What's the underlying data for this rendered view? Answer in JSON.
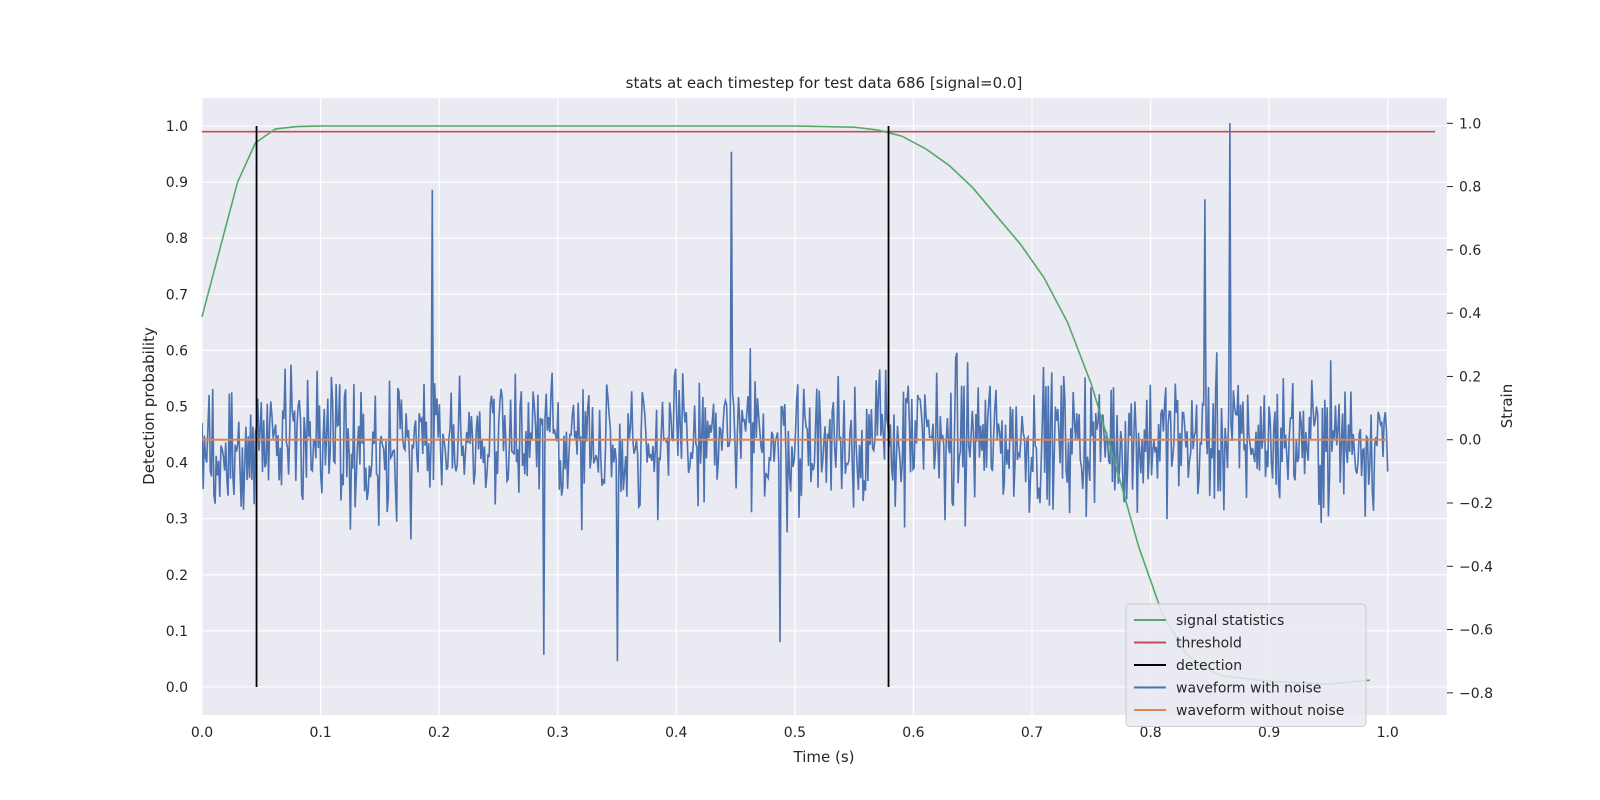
{
  "chart_data": {
    "type": "line",
    "title": "stats at each timestep for test data 686 [signal=0.0]",
    "xlabel": "Time (s)",
    "ylabel": "Detection probability",
    "y2label": "Strain",
    "xlim": [
      0.0,
      1.05
    ],
    "ylim": [
      -0.05,
      1.05
    ],
    "y2lim": [
      -0.87,
      1.08
    ],
    "grid": true,
    "legend_placement": "lower-right",
    "x_ticks": [
      "0.0",
      "0.1",
      "0.2",
      "0.3",
      "0.4",
      "0.5",
      "0.6",
      "0.7",
      "0.8",
      "0.9",
      "1.0"
    ],
    "y_ticks": [
      "0.0",
      "0.1",
      "0.2",
      "0.3",
      "0.4",
      "0.5",
      "0.6",
      "0.7",
      "0.8",
      "0.9",
      "1.0"
    ],
    "y2_ticks": [
      "−0.8",
      "−0.6",
      "−0.4",
      "−0.2",
      "0.0",
      "0.2",
      "0.4",
      "0.6",
      "0.8",
      "1.0"
    ],
    "series": [
      {
        "name": "signal statistics",
        "axis": "left",
        "color": "#55a868",
        "x": [
          0.0,
          0.02,
          0.03,
          0.045,
          0.062,
          0.08,
          0.1,
          0.2,
          0.3,
          0.4,
          0.5,
          0.55,
          0.57,
          0.59,
          0.61,
          0.63,
          0.65,
          0.67,
          0.69,
          0.71,
          0.73,
          0.75,
          0.77,
          0.79,
          0.81,
          0.83,
          0.84,
          0.86,
          0.9,
          0.95,
          0.985
        ],
        "y": [
          0.66,
          0.82,
          0.9,
          0.97,
          0.995,
          0.999,
          1.0,
          1.0,
          1.0,
          1.0,
          1.0,
          0.998,
          0.993,
          0.982,
          0.96,
          0.93,
          0.89,
          0.84,
          0.79,
          0.73,
          0.65,
          0.54,
          0.4,
          0.25,
          0.13,
          0.06,
          0.04,
          0.02,
          0.01,
          0.005,
          0.012
        ]
      },
      {
        "name": "threshold",
        "axis": "left",
        "color": "#c44e52",
        "x": [
          0.0,
          1.04
        ],
        "y": [
          0.99,
          0.99
        ]
      },
      {
        "name": "detection",
        "axis": "left",
        "color": "#000000",
        "x_positions": [
          0.046,
          0.579
        ],
        "y_range": [
          0.0,
          1.0
        ]
      },
      {
        "name": "waveform with noise",
        "axis": "right",
        "color": "#4c72b0",
        "n_points": 1000,
        "x_range": [
          0.0,
          1.0
        ],
        "y_range_observed": [
          -0.7,
          1.0
        ],
        "peaks": [
          {
            "x": 0.194,
            "y": 0.79
          },
          {
            "x": 0.446,
            "y": 0.91
          },
          {
            "x": 0.867,
            "y": 1.0
          },
          {
            "x": 0.846,
            "y": 0.76
          },
          {
            "x": 0.35,
            "y": -0.7
          },
          {
            "x": 0.288,
            "y": -0.68
          },
          {
            "x": 0.487,
            "y": -0.64
          }
        ]
      },
      {
        "name": "waveform without noise",
        "axis": "right",
        "color": "#dd8452",
        "x": [
          0.0,
          1.0
        ],
        "y": [
          0.0,
          0.0
        ]
      }
    ],
    "legend": [
      "signal statistics",
      "threshold",
      "detection",
      "waveform with noise",
      "waveform without noise"
    ]
  }
}
